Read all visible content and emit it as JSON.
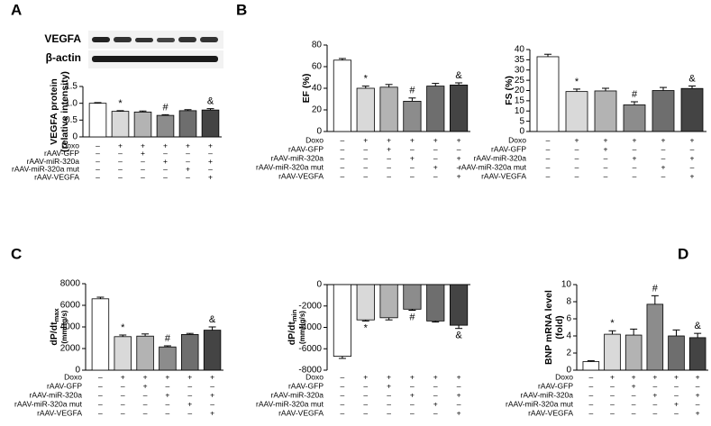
{
  "chart_data": [
    {
      "type": "bar",
      "panel": "A",
      "blot_labels": [
        "VEGFA",
        "β-actin"
      ],
      "ylabel": [
        "VEGFA protein",
        "(relative intensity)"
      ],
      "categories": [
        null,
        null,
        null,
        null,
        null,
        null
      ],
      "values": [
        1.0,
        0.76,
        0.74,
        0.64,
        0.78,
        0.8
      ],
      "errors": [
        0.02,
        0.02,
        0.03,
        0.02,
        0.03,
        0.04
      ],
      "colors": [
        "#ffffff",
        "#d9d9d9",
        "#b3b3b3",
        "#8c8c8c",
        "#6e6e6e",
        "#444444"
      ],
      "bar_labels": [
        null,
        "*",
        null,
        "#",
        null,
        "&"
      ],
      "ylim": [
        0,
        1.5
      ],
      "yticks": [
        0,
        0.5,
        {
          "value": 1,
          "label": "1.0"
        },
        1.5
      ],
      "table": [
        {
          "label": "Doxo",
          "signs": [
            "–",
            "+",
            "+",
            "+",
            "+",
            "+"
          ]
        },
        {
          "label": "rAAV-GFP",
          "signs": [
            "–",
            "–",
            "+",
            "–",
            "–",
            "–"
          ]
        },
        {
          "label": "rAAV-miR-320a",
          "signs": [
            "–",
            "–",
            "–",
            "+",
            "–",
            "+"
          ]
        },
        {
          "label": "rAAV-miR-320a mut",
          "signs": [
            "–",
            "–",
            "–",
            "–",
            "+",
            "–"
          ]
        },
        {
          "label": "rAAV-VEGFA",
          "signs": [
            "–",
            "–",
            "–",
            "–",
            "–",
            "+"
          ]
        }
      ]
    },
    {
      "type": "bar",
      "panel": "B",
      "ylabel": [
        "EF (%)"
      ],
      "categories": [
        null,
        null,
        null,
        null,
        null,
        null
      ],
      "values": [
        66,
        40,
        41,
        28,
        42,
        43
      ],
      "errors": [
        1.5,
        2,
        2.5,
        3,
        2.5,
        2
      ],
      "colors": [
        "#ffffff",
        "#d9d9d9",
        "#b3b3b3",
        "#8c8c8c",
        "#6e6e6e",
        "#444444"
      ],
      "bar_labels": [
        null,
        "*",
        null,
        "#",
        null,
        "&"
      ],
      "ylim": [
        0,
        80
      ],
      "yticks": [
        0,
        20,
        40,
        60,
        80
      ],
      "table": [
        {
          "label": "Doxo",
          "signs": [
            "–",
            "+",
            "+",
            "+",
            "+",
            "+"
          ]
        },
        {
          "label": "rAAV-GFP",
          "signs": [
            "–",
            "–",
            "+",
            "–",
            "–",
            "–"
          ]
        },
        {
          "label": "rAAV-miR-320a",
          "signs": [
            "–",
            "–",
            "–",
            "+",
            "–",
            "+"
          ]
        },
        {
          "label": "rAAV-miR-320a mut",
          "signs": [
            "–",
            "–",
            "–",
            "–",
            "+",
            "–"
          ]
        },
        {
          "label": "rAAV-VEGFA",
          "signs": [
            "–",
            "–",
            "–",
            "–",
            "–",
            "+"
          ]
        }
      ]
    },
    {
      "type": "bar",
      "ylabel": [
        "FS (%)"
      ],
      "categories": [
        null,
        null,
        null,
        null,
        null,
        null
      ],
      "values": [
        36.5,
        19.5,
        19.8,
        13,
        20,
        21
      ],
      "errors": [
        1.2,
        1.2,
        1.3,
        1.5,
        1.5,
        1.2
      ],
      "colors": [
        "#ffffff",
        "#d9d9d9",
        "#b3b3b3",
        "#8c8c8c",
        "#6e6e6e",
        "#444444"
      ],
      "bar_labels": [
        null,
        "*",
        null,
        "#",
        null,
        "&"
      ],
      "ylim": [
        0,
        40
      ],
      "yticks": [
        0,
        5,
        10,
        15,
        20,
        25,
        30,
        35,
        40
      ],
      "table": [
        {
          "label": "Doxo",
          "signs": [
            "–",
            "+",
            "+",
            "+",
            "+",
            "+"
          ]
        },
        {
          "label": "rAAV-GFP",
          "signs": [
            "–",
            "–",
            "+",
            "–",
            "–",
            "–"
          ]
        },
        {
          "label": "rAAV-miR-320a",
          "signs": [
            "–",
            "–",
            "–",
            "+",
            "–",
            "+"
          ]
        },
        {
          "label": "rAAV-miR-320a mut",
          "signs": [
            "–",
            "–",
            "–",
            "–",
            "+",
            "–"
          ]
        },
        {
          "label": "rAAV-VEGFA",
          "signs": [
            "–",
            "–",
            "–",
            "–",
            "–",
            "+"
          ]
        }
      ]
    },
    {
      "type": "bar",
      "panel": "C",
      "ylabel": [
        "dP/dt"
      ],
      "ylabel_sub": "max",
      "yunit": "(mmHg/s)",
      "categories": [
        null,
        null,
        null,
        null,
        null,
        null
      ],
      "values": [
        6600,
        3100,
        3150,
        2150,
        3300,
        3700
      ],
      "errors": [
        150,
        150,
        200,
        100,
        100,
        300
      ],
      "colors": [
        "#ffffff",
        "#d9d9d9",
        "#b3b3b3",
        "#8c8c8c",
        "#6e6e6e",
        "#444444"
      ],
      "bar_labels": [
        null,
        "*",
        null,
        "#",
        null,
        "&"
      ],
      "ylim": [
        0,
        8000
      ],
      "yticks": [
        0,
        2000,
        4000,
        6000,
        8000
      ],
      "table": [
        {
          "label": "Doxo",
          "signs": [
            "–",
            "+",
            "+",
            "+",
            "+",
            "+"
          ]
        },
        {
          "label": "rAAV-GFP",
          "signs": [
            "–",
            "–",
            "+",
            "–",
            "–",
            "–"
          ]
        },
        {
          "label": "rAAV-miR-320a",
          "signs": [
            "–",
            "–",
            "–",
            "+",
            "–",
            "+"
          ]
        },
        {
          "label": "rAAV-miR-320a mut",
          "signs": [
            "–",
            "–",
            "–",
            "–",
            "+",
            "–"
          ]
        },
        {
          "label": "rAAV-VEGFA",
          "signs": [
            "–",
            "–",
            "–",
            "–",
            "–",
            "+"
          ]
        }
      ]
    },
    {
      "type": "bar",
      "ylabel": [
        "dP/dt"
      ],
      "ylabel_sub": "min",
      "yunit": "(mmHg/s)",
      "categories": [
        null,
        null,
        null,
        null,
        null,
        null
      ],
      "values": [
        -6700,
        -3300,
        -3100,
        -2300,
        -3400,
        -3800
      ],
      "errors": [
        200,
        100,
        200,
        100,
        100,
        300
      ],
      "colors": [
        "#ffffff",
        "#d9d9d9",
        "#b3b3b3",
        "#8c8c8c",
        "#6e6e6e",
        "#444444"
      ],
      "bar_labels": [
        null,
        "*",
        null,
        "#",
        null,
        "&"
      ],
      "ylim": [
        -8000,
        0
      ],
      "yticks": [
        0,
        -2000,
        -4000,
        -6000,
        -8000
      ],
      "table": [
        {
          "label": "Doxo",
          "signs": [
            "–",
            "+",
            "+",
            "+",
            "+",
            "+"
          ]
        },
        {
          "label": "rAAV-GFP",
          "signs": [
            "–",
            "–",
            "+",
            "–",
            "–",
            "–"
          ]
        },
        {
          "label": "rAAV-miR-320a",
          "signs": [
            "–",
            "–",
            "–",
            "+",
            "–",
            "+"
          ]
        },
        {
          "label": "rAAV-miR-320a mut",
          "signs": [
            "–",
            "–",
            "–",
            "–",
            "+",
            "–"
          ]
        },
        {
          "label": "rAAV-VEGFA",
          "signs": [
            "–",
            "–",
            "–",
            "–",
            "–",
            "+"
          ]
        }
      ]
    },
    {
      "type": "bar",
      "panel": "D",
      "ylabel": [
        "BNP mRNA level",
        "(fold)"
      ],
      "categories": [
        null,
        null,
        null,
        null,
        null,
        null
      ],
      "values": [
        1.0,
        4.2,
        4.1,
        7.7,
        4.0,
        3.8
      ],
      "errors": [
        0.1,
        0.4,
        0.7,
        1.0,
        0.7,
        0.5
      ],
      "colors": [
        "#ffffff",
        "#d9d9d9",
        "#b3b3b3",
        "#8c8c8c",
        "#6e6e6e",
        "#444444"
      ],
      "bar_labels": [
        null,
        "*",
        null,
        "#",
        null,
        "&"
      ],
      "ylim": [
        0,
        10
      ],
      "yticks": [
        0,
        2,
        4,
        6,
        8,
        10
      ],
      "table": [
        {
          "label": "Doxo",
          "signs": [
            "–",
            "+",
            "+",
            "+",
            "+",
            "+"
          ]
        },
        {
          "label": "rAAV-GFP",
          "signs": [
            "–",
            "–",
            "+",
            "–",
            "–",
            "–"
          ]
        },
        {
          "label": "rAAV-miR-320a",
          "signs": [
            "–",
            "–",
            "–",
            "+",
            "–",
            "+"
          ]
        },
        {
          "label": "rAAV-miR-320a mut",
          "signs": [
            "–",
            "–",
            "–",
            "–",
            "+",
            "–"
          ]
        },
        {
          "label": "rAAV-VEGFA",
          "signs": [
            "–",
            "–",
            "–",
            "–",
            "–",
            "+"
          ]
        }
      ]
    }
  ]
}
